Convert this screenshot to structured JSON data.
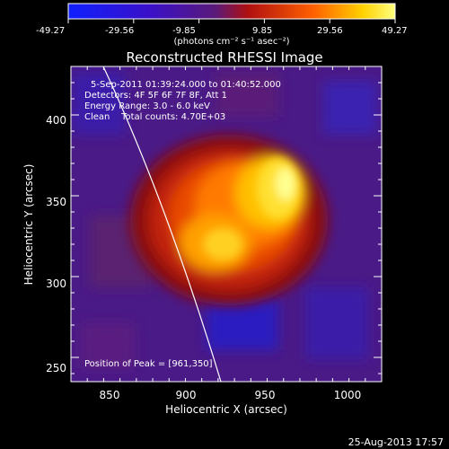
{
  "colorbar": {
    "ticks": [
      "-49.27",
      "-29.56",
      "-9.85",
      "9.85",
      "29.56",
      "49.27"
    ],
    "unit_label": "(photons cm⁻² s⁻¹ asec⁻²)",
    "range": [
      -49.27,
      49.27
    ]
  },
  "plot": {
    "title": "Reconstructed RHESSI Image",
    "xlabel": "Heliocentric X (arcsec)",
    "ylabel": "Heliocentric Y (arcsec)",
    "xticks": [
      "850",
      "900",
      "950",
      "1000"
    ],
    "yticks": [
      "250",
      "300",
      "350",
      "400"
    ],
    "xlim": [
      825,
      1015
    ],
    "ylim": [
      235,
      430
    ]
  },
  "annotations": {
    "time_range": "5-Sep-2011 01:39:24.000 to 01:40:52.000",
    "detectors": "Detectors: 4F 5F 6F 7F 8F, Att 1",
    "energy": "Energy Range: 3.0 - 6.0 keV",
    "clean": "Clean    Total counts: 4.70E+03",
    "peak": "Position of Peak = [961,350]"
  },
  "footer": {
    "timestamp": "25-Aug-2013 17:57"
  },
  "colors": {
    "background": "#000000",
    "limb": "#ffffff"
  }
}
